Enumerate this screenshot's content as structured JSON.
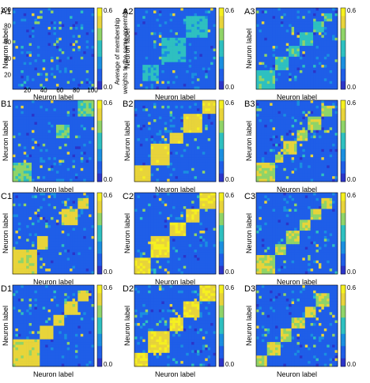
{
  "figure": {
    "colormap": [
      "#2c35c9",
      "#1f5ee8",
      "#1a8fe0",
      "#2ec0c0",
      "#8fd468",
      "#e8d43a",
      "#f5f020"
    ],
    "axis_labels": {
      "neuron": "Neuron label"
    },
    "colorbar": {
      "max_label": "0.6",
      "min_label": "0.0",
      "caption_line1": "Average of membership",
      "caption_line2": "weights to the same ensemble"
    },
    "a1_ticks": {
      "y": [
        "100",
        "80",
        "60",
        "40",
        "20"
      ],
      "x": [
        "20",
        "40",
        "60",
        "80",
        "100"
      ]
    },
    "panels": [
      {
        "id": "A1",
        "label": "A1",
        "blocks": [],
        "intensity": 0.25
      },
      {
        "id": "A2",
        "label": "A2",
        "blocks": [
          [
            0.35,
            0.65
          ],
          [
            0.65,
            0.9
          ],
          [
            0.1,
            0.3
          ]
        ],
        "intensity": 0.45
      },
      {
        "id": "A3",
        "label": "A3",
        "blocks": [
          [
            0.0,
            0.25
          ],
          [
            0.25,
            0.4
          ],
          [
            0.4,
            0.55
          ],
          [
            0.55,
            0.7
          ],
          [
            0.7,
            0.82
          ],
          [
            0.82,
            0.92
          ]
        ],
        "intensity": 0.55
      },
      {
        "id": "B1",
        "label": "B1",
        "blocks": [
          [
            0.0,
            0.25
          ],
          [
            0.8,
            1.0
          ],
          [
            0.55,
            0.7
          ]
        ],
        "intensity": 0.6
      },
      {
        "id": "B2",
        "label": "B2",
        "blocks": [
          [
            0.0,
            0.2
          ],
          [
            0.2,
            0.45
          ],
          [
            0.45,
            0.6
          ],
          [
            0.6,
            0.82
          ],
          [
            0.82,
            1.0
          ]
        ],
        "intensity": 0.85
      },
      {
        "id": "B3",
        "label": "B3",
        "blocks": [
          [
            0.0,
            0.22
          ],
          [
            0.22,
            0.35
          ],
          [
            0.35,
            0.5
          ],
          [
            0.5,
            0.65
          ],
          [
            0.65,
            0.8
          ],
          [
            0.8,
            0.92
          ]
        ],
        "intensity": 0.75
      },
      {
        "id": "C1",
        "label": "C1",
        "blocks": [
          [
            0.0,
            0.3
          ],
          [
            0.3,
            0.45
          ],
          [
            0.6,
            0.8
          ],
          [
            0.8,
            0.95
          ]
        ],
        "intensity": 0.8
      },
      {
        "id": "C2",
        "label": "C2",
        "blocks": [
          [
            0.0,
            0.2
          ],
          [
            0.2,
            0.45
          ],
          [
            0.45,
            0.62
          ],
          [
            0.62,
            0.8
          ],
          [
            0.8,
            1.0
          ]
        ],
        "intensity": 0.9
      },
      {
        "id": "C3",
        "label": "C3",
        "blocks": [
          [
            0.0,
            0.25
          ],
          [
            0.25,
            0.38
          ],
          [
            0.38,
            0.52
          ],
          [
            0.52,
            0.66
          ],
          [
            0.66,
            0.8
          ],
          [
            0.8,
            0.92
          ]
        ],
        "intensity": 0.75
      },
      {
        "id": "D1",
        "label": "D1",
        "blocks": [
          [
            0.0,
            0.35
          ],
          [
            0.35,
            0.5
          ],
          [
            0.5,
            0.62
          ],
          [
            0.62,
            0.8
          ],
          [
            0.8,
            0.95
          ]
        ],
        "intensity": 0.8
      },
      {
        "id": "D2",
        "label": "D2",
        "blocks": [
          [
            0.0,
            0.18
          ],
          [
            0.18,
            0.42
          ],
          [
            0.42,
            0.6
          ],
          [
            0.6,
            0.8
          ],
          [
            0.8,
            1.0
          ]
        ],
        "intensity": 0.9
      },
      {
        "id": "D3",
        "label": "D3",
        "blocks": [
          [
            0.0,
            0.15
          ],
          [
            0.15,
            0.3
          ],
          [
            0.3,
            0.45
          ],
          [
            0.45,
            0.6
          ],
          [
            0.6,
            0.75
          ],
          [
            0.75,
            0.9
          ]
        ],
        "intensity": 0.75
      }
    ]
  }
}
